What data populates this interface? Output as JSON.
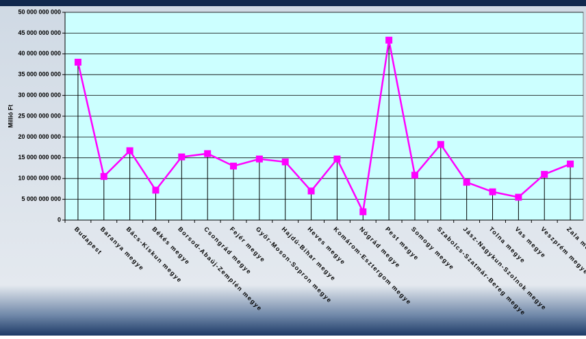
{
  "chart_data": {
    "type": "line",
    "y_label": "Millió Ft",
    "categories": [
      "Budapest",
      "Baranya megye",
      "Bács-Kiskun megye",
      "Békés megye",
      "Borsod-Abaúj-Zemplén megye",
      "Csongrád megye",
      "Fejér megye",
      "Győr-Moson-Sopron megye",
      "Hajdú-Bihar megye",
      "Heves megye",
      "Komárom-Esztergom megye",
      "Nógrád megye",
      "Pest megye",
      "Somogy megye",
      "Szabolcs-Szatmár-Bereg megye",
      "Jász-Nagykun-Szolnok megye",
      "Tolna megye",
      "Vas megye",
      "Veszprém megye",
      "Zala megye"
    ],
    "series": [
      {
        "name": "Millió Ft",
        "color": "#ff00ff",
        "values": [
          38000000000,
          10500000000,
          16700000000,
          7200000000,
          15200000000,
          16000000000,
          13000000000,
          14700000000,
          14000000000,
          7000000000,
          14700000000,
          2000000000,
          43300000000,
          10800000000,
          18200000000,
          9100000000,
          6800000000,
          5500000000,
          11000000000,
          13500000000
        ]
      }
    ],
    "ylim": [
      0,
      50000000000
    ],
    "yticks": [
      0,
      {
        "value": 5000000000,
        "label": "5 000 000 000"
      },
      {
        "value": 10000000000,
        "label": "10 000 000 000"
      },
      {
        "value": 15000000000,
        "label": "15 000 000 000"
      },
      {
        "value": 20000000000,
        "label": "20 000 000 000"
      },
      {
        "value": 25000000000,
        "label": "25 000 000 000"
      },
      {
        "value": 30000000000,
        "label": "30 000 000 000"
      },
      {
        "value": 35000000000,
        "label": "35 000 000 000"
      },
      {
        "value": 40000000000,
        "label": "40 000 000 000"
      },
      {
        "value": 45000000000,
        "label": "45 000 000 000"
      },
      {
        "value": 50000000000,
        "label": "50 000 000 000"
      }
    ],
    "grid": true,
    "drop_lines": true,
    "plot_background": "#ccffff"
  }
}
